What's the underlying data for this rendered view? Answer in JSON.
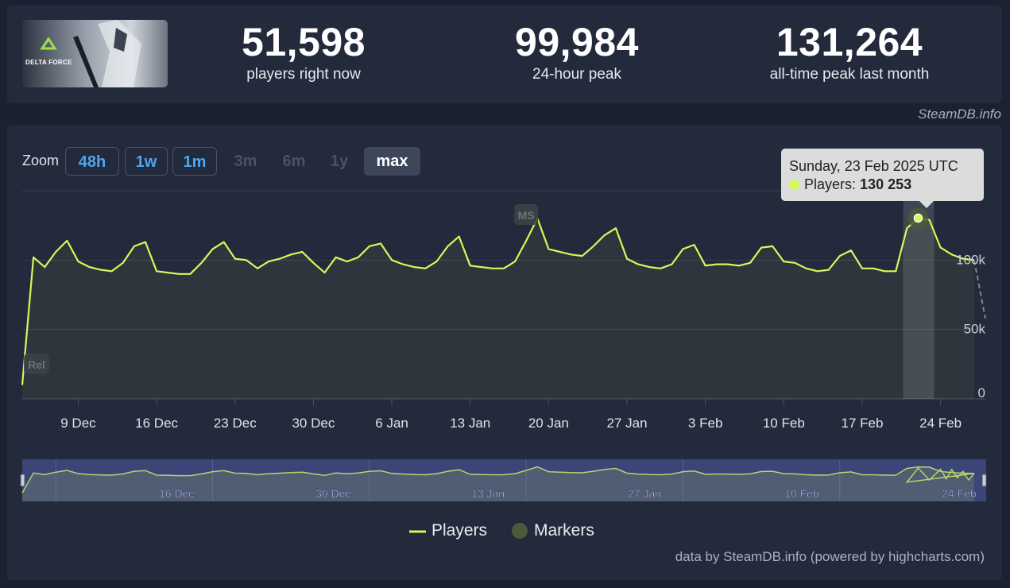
{
  "stats": [
    {
      "value": "51,598",
      "label": "players right now"
    },
    {
      "value": "99,984",
      "label": "24-hour peak"
    },
    {
      "value": "131,264",
      "label": "all-time peak last month"
    }
  ],
  "game": {
    "logo_text": "DELTA FORCE"
  },
  "credit_top": "SteamDB.info",
  "zoom": {
    "label": "Zoom",
    "buttons": [
      {
        "label": "48h",
        "state": "active"
      },
      {
        "label": "1w",
        "state": "active"
      },
      {
        "label": "1m",
        "state": "active"
      },
      {
        "label": "3m",
        "state": "disabled"
      },
      {
        "label": "6m",
        "state": "disabled"
      },
      {
        "label": "1y",
        "state": "disabled"
      },
      {
        "label": "max",
        "state": "selected"
      }
    ]
  },
  "tooltip": {
    "date": "Sunday, 23 Feb 2025 UTC",
    "series": "Players:",
    "value": "130 253"
  },
  "legend": {
    "players": "Players",
    "markers": "Markers"
  },
  "credit_bottom": "data by SteamDB.info (powered by highcharts.com)",
  "colors": {
    "line": "#d4f95b",
    "marker": "#4b5a3a",
    "navigator_bg": "#3a4677"
  },
  "chart_data": {
    "type": "line",
    "x_ticks": [
      "9 Dec",
      "16 Dec",
      "23 Dec",
      "30 Dec",
      "6 Jan",
      "13 Jan",
      "20 Jan",
      "27 Jan",
      "3 Feb",
      "10 Feb",
      "17 Feb",
      "24 Feb"
    ],
    "y_ticks": [
      {
        "value": 0,
        "label": "0"
      },
      {
        "value": 50000,
        "label": "50k"
      },
      {
        "value": 100000,
        "label": "100k"
      }
    ],
    "ylim": [
      0,
      150000
    ],
    "x_start_date": "2024-12-04",
    "markers": [
      {
        "label": "Rel",
        "day": 0
      },
      {
        "label": "MS",
        "day": 45
      }
    ],
    "series": [
      {
        "name": "Players",
        "points": [
          [
            0,
            10000
          ],
          [
            1,
            102000
          ],
          [
            2,
            95000
          ],
          [
            3,
            106000
          ],
          [
            4,
            114000
          ],
          [
            5,
            99000
          ],
          [
            6,
            95000
          ],
          [
            7,
            93000
          ],
          [
            8,
            92000
          ],
          [
            9,
            98000
          ],
          [
            10,
            110000
          ],
          [
            11,
            113000
          ],
          [
            12,
            92000
          ],
          [
            13,
            91000
          ],
          [
            14,
            90000
          ],
          [
            15,
            90000
          ],
          [
            16,
            98000
          ],
          [
            17,
            108000
          ],
          [
            18,
            113000
          ],
          [
            19,
            101000
          ],
          [
            20,
            100000
          ],
          [
            21,
            94000
          ],
          [
            22,
            99000
          ],
          [
            23,
            101000
          ],
          [
            24,
            104000
          ],
          [
            25,
            106000
          ],
          [
            26,
            98000
          ],
          [
            27,
            91000
          ],
          [
            28,
            102000
          ],
          [
            29,
            99000
          ],
          [
            30,
            102000
          ],
          [
            31,
            110000
          ],
          [
            32,
            112000
          ],
          [
            33,
            100000
          ],
          [
            34,
            97000
          ],
          [
            35,
            95000
          ],
          [
            36,
            94000
          ],
          [
            37,
            99000
          ],
          [
            38,
            110000
          ],
          [
            39,
            117000
          ],
          [
            40,
            96000
          ],
          [
            41,
            95000
          ],
          [
            42,
            94000
          ],
          [
            43,
            94000
          ],
          [
            44,
            99000
          ],
          [
            45,
            114000
          ],
          [
            46,
            130000
          ],
          [
            47,
            108000
          ],
          [
            48,
            106000
          ],
          [
            49,
            104000
          ],
          [
            50,
            103000
          ],
          [
            51,
            110000
          ],
          [
            52,
            118000
          ],
          [
            53,
            123000
          ],
          [
            54,
            101000
          ],
          [
            55,
            97000
          ],
          [
            56,
            95000
          ],
          [
            57,
            94000
          ],
          [
            58,
            97000
          ],
          [
            59,
            108000
          ],
          [
            60,
            111000
          ],
          [
            61,
            96000
          ],
          [
            62,
            97000
          ],
          [
            63,
            97000
          ],
          [
            64,
            96000
          ],
          [
            65,
            98000
          ],
          [
            66,
            109000
          ],
          [
            67,
            110000
          ],
          [
            68,
            99000
          ],
          [
            69,
            98000
          ],
          [
            70,
            94000
          ],
          [
            71,
            92000
          ],
          [
            72,
            93000
          ],
          [
            73,
            103000
          ],
          [
            74,
            107000
          ],
          [
            75,
            94000
          ],
          [
            76,
            94000
          ],
          [
            77,
            92000
          ],
          [
            78,
            92000
          ],
          [
            79,
            123000
          ],
          [
            80,
            130253
          ],
          [
            81,
            129000
          ],
          [
            82,
            109000
          ],
          [
            83,
            104000
          ],
          [
            84,
            101000
          ],
          [
            85,
            100000
          ]
        ],
        "projected": [
          [
            85,
            100000
          ],
          [
            86,
            58000
          ]
        ]
      }
    ],
    "highlight_day": 80
  }
}
